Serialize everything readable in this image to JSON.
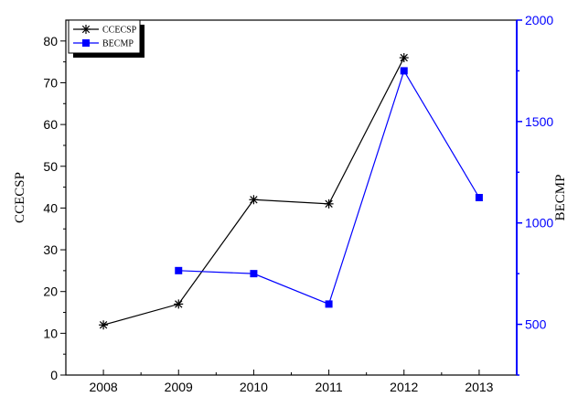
{
  "chart_data": {
    "type": "line",
    "x": [
      2008,
      2009,
      2010,
      2011,
      2012,
      2013
    ],
    "x_ticks": [
      "2008",
      "2009",
      "2010",
      "2011",
      "2012",
      "2013"
    ],
    "xlim": [
      2007.5,
      2013.5
    ],
    "ylabel_left": "CCECSP",
    "ylabel_right": "BECMP",
    "ylim_left": [
      0,
      85
    ],
    "ylim_right": [
      250,
      2000
    ],
    "yticks_left": [
      "0",
      "10",
      "20",
      "30",
      "40",
      "50",
      "60",
      "70",
      "80"
    ],
    "yticks_right": [
      "500",
      "1000",
      "1500",
      "2000"
    ],
    "grid": false,
    "legend_position": "top-left",
    "series": [
      {
        "name": "CCECSP",
        "axis": "left",
        "color": "#000000",
        "marker": "asterisk",
        "x": [
          2008,
          2009,
          2010,
          2011,
          2012
        ],
        "values": [
          12,
          17,
          42,
          41,
          76
        ]
      },
      {
        "name": "BECMP",
        "axis": "right",
        "color": "#0000ff",
        "marker": "square",
        "x": [
          2009,
          2010,
          2011,
          2012,
          2013
        ],
        "values": [
          765,
          750,
          600,
          1750,
          1125
        ]
      }
    ]
  }
}
